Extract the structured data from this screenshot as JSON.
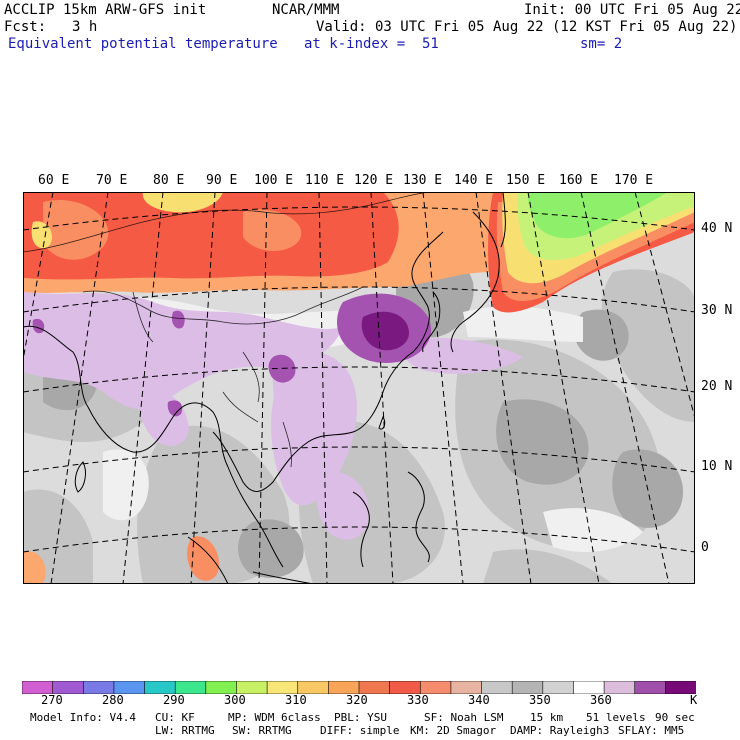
{
  "header": {
    "model": "ACCLIP 15km ARW-GFS init",
    "org": "NCAR/MMM",
    "init": "Init: 00 UTC Fri 05 Aug 22",
    "fcst_label": "Fcst:",
    "fcst_value": "3 h",
    "valid": "Valid: 03 UTC Fri 05 Aug 22 (12 KST Fri 05 Aug 22)",
    "field": "Equivalent potential temperature",
    "level": "at k-index =  51",
    "smooth": "sm= 2"
  },
  "map": {
    "lon_labels": [
      "60 E",
      "70 E",
      "80 E",
      "90 E",
      "100 E",
      "110 E",
      "120 E",
      "130 E",
      "140 E",
      "150 E",
      "160 E",
      "170 E"
    ],
    "lat_labels": [
      "40 N",
      "30 N",
      "20 N",
      "10 N",
      "0"
    ],
    "colors": {
      "hot": "#f55a45",
      "warm": "#f98e62",
      "orange": "#fba76e",
      "yellow": "#f8df72",
      "green": "#8ef06a",
      "lightgreen": "#c7f27a",
      "gray_dark": "#a8a8a8",
      "gray": "#c4c4c4",
      "gray_light": "#dcdcdc",
      "white": "#f0f0f0",
      "lilac": "#dcbde6",
      "purple": "#a453b0",
      "deep_purple": "#7a1a80"
    }
  },
  "colorbar": {
    "unit": "K",
    "colors": [
      "#d25fd2",
      "#a05ad2",
      "#7a7ae6",
      "#5a96f0",
      "#28c8c8",
      "#3ce68c",
      "#82f050",
      "#c8f064",
      "#f8e678",
      "#f8c864",
      "#f8a55a",
      "#f07850",
      "#f05a46",
      "#f58c6e",
      "#e6b4a0",
      "#c8c8c8",
      "#b4b4b4",
      "#d2d2d2",
      "#ffffff",
      "#dcbedc",
      "#a050aa",
      "#780a78"
    ],
    "tick_labels": [
      "270",
      "280",
      "290",
      "300",
      "310",
      "320",
      "330",
      "340",
      "350",
      "360"
    ]
  },
  "footer": {
    "line1": [
      "Model Info: V4.4",
      "CU: KF",
      "MP: WDM 6class",
      "PBL: YSU",
      "SF: Noah LSM",
      "15 km",
      "51 levels",
      "90 sec"
    ],
    "line2": [
      "LW: RRTMG",
      "SW: RRTMG",
      "DIFF: simple",
      "KM: 2D Smagor",
      "DAMP: Rayleigh3",
      "SFLAY: MM5"
    ]
  }
}
